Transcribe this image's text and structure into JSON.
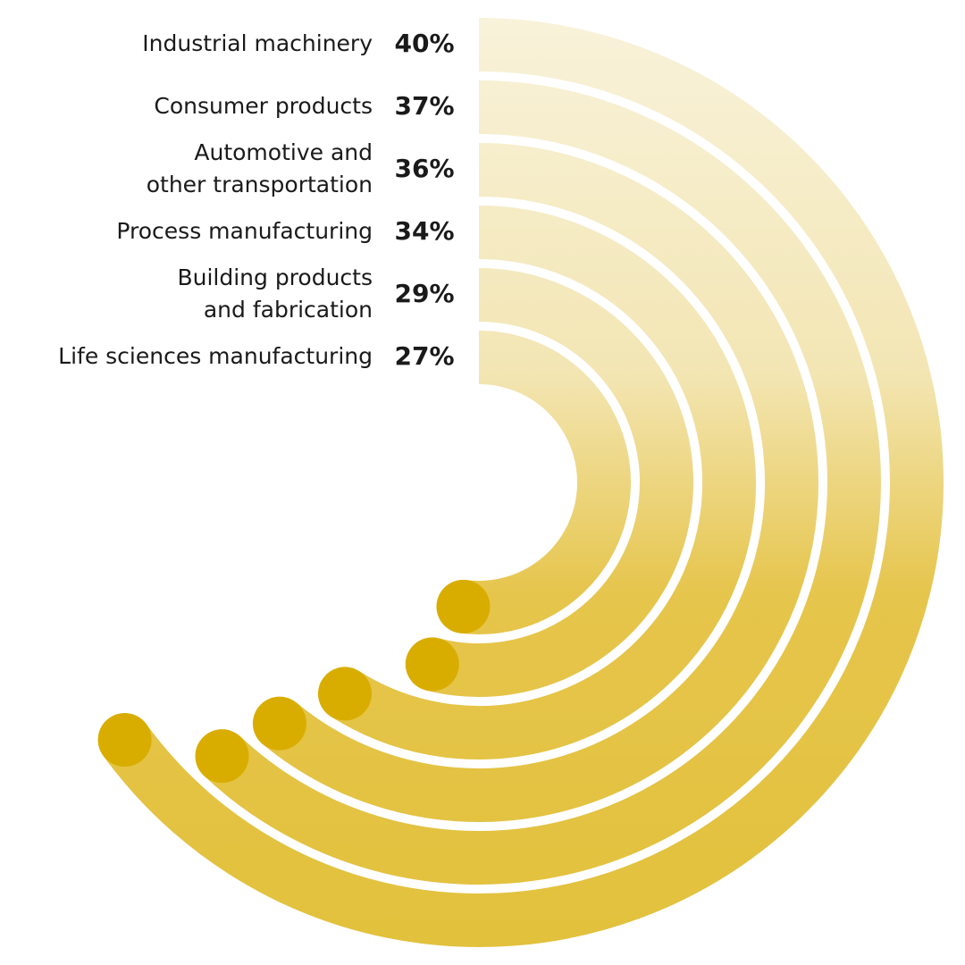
{
  "chart_data": {
    "type": "radial-bar",
    "categories": [
      "Industrial machinery",
      "Consumer products",
      "Automotive and\nother transportation",
      "Process manufacturing",
      "Building products\nand fabrication",
      "Life sciences manufacturing"
    ],
    "values": [
      40,
      37,
      36,
      34,
      29,
      27
    ],
    "value_labels": [
      "40%",
      "37%",
      "36%",
      "34%",
      "29%",
      "27%"
    ],
    "color": "#e2c13c",
    "end_color": "#d9ad00"
  }
}
